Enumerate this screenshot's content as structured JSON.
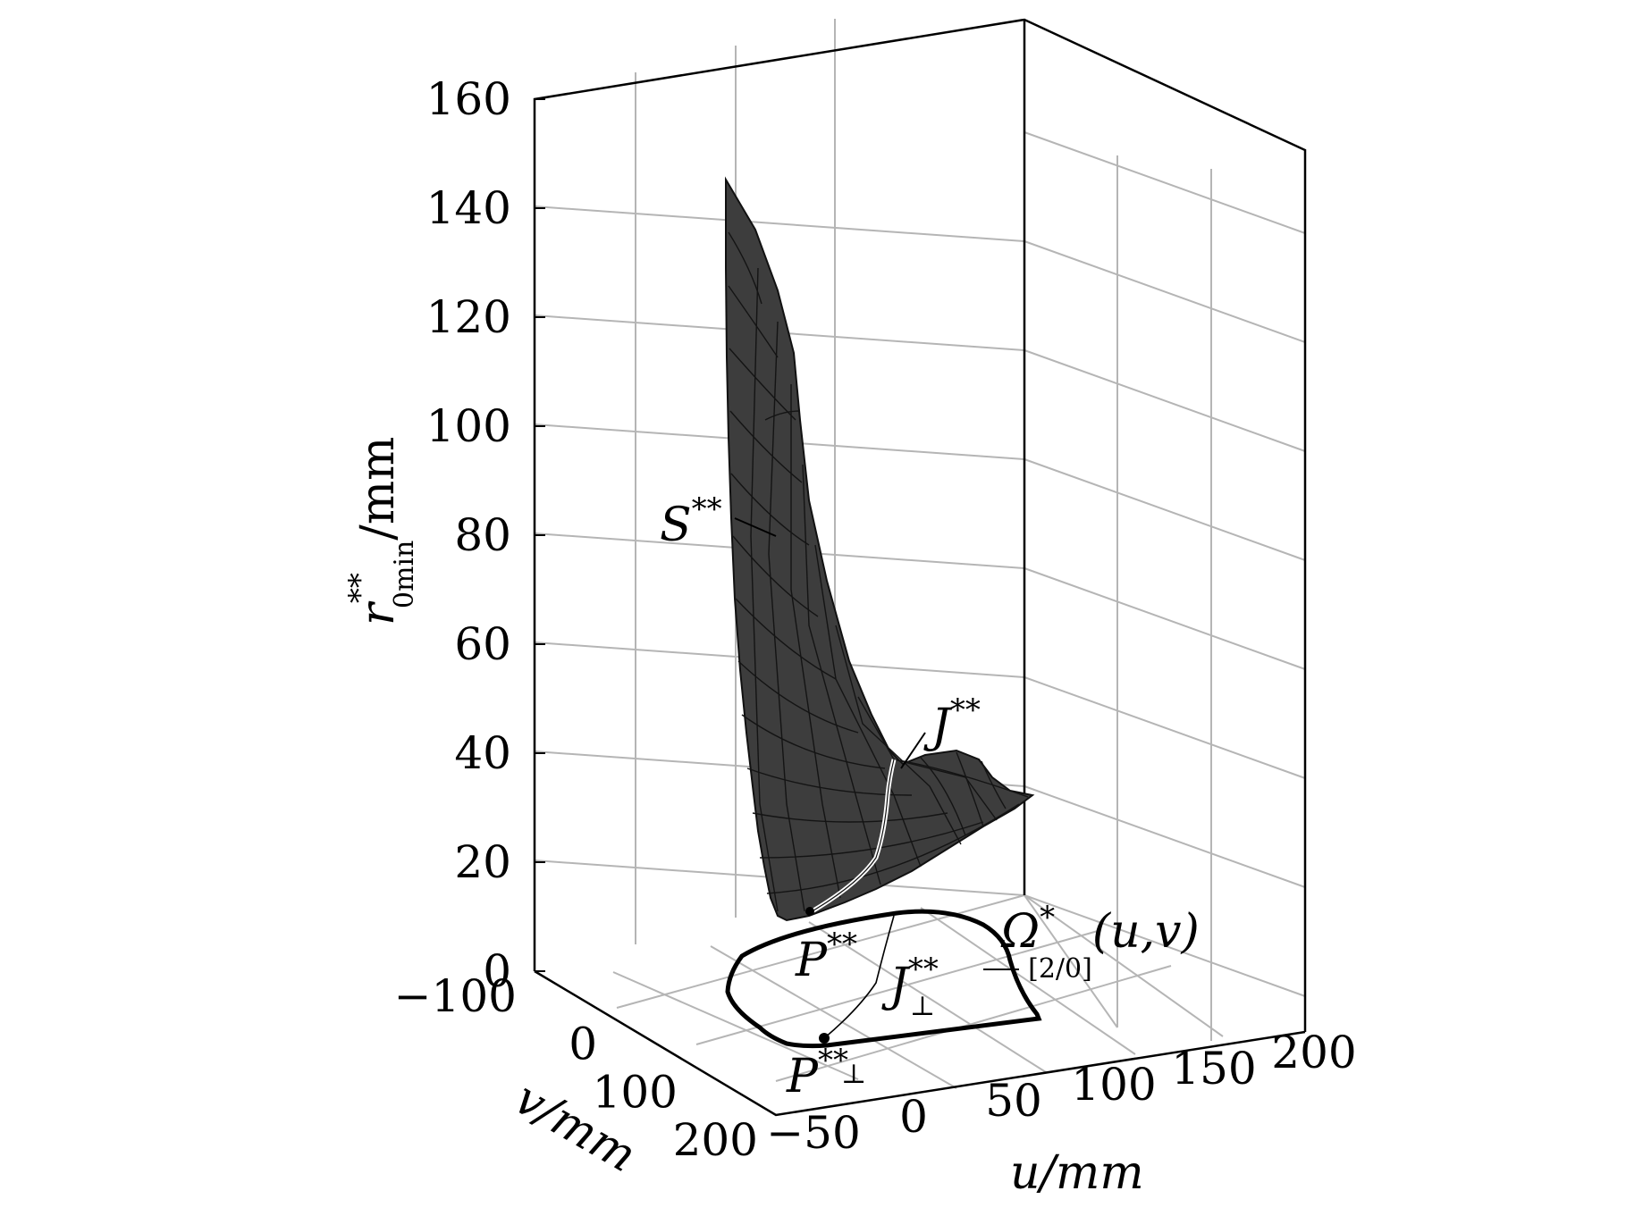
{
  "chart_data": {
    "type": "surface3d",
    "title": "",
    "axes": {
      "z": {
        "label": "r**0min/mm",
        "label_base": "r",
        "label_sup": "**",
        "label_sub": "0min",
        "label_unit": "/mm",
        "ticks": [
          "0",
          "20",
          "40",
          "60",
          "80",
          "100",
          "120",
          "140",
          "160"
        ],
        "range": [
          0,
          160
        ]
      },
      "v": {
        "label": "v/mm",
        "ticks": [
          "−100",
          "0",
          "100",
          "200"
        ],
        "range": [
          -100,
          200
        ]
      },
      "u": {
        "label": "u/mm",
        "ticks": [
          "−50",
          "0",
          "50",
          "100",
          "150",
          "200"
        ],
        "range": [
          -50,
          200
        ]
      }
    },
    "annotations": {
      "surface": {
        "base": "S",
        "sup": "**"
      },
      "ridge": {
        "base": "J",
        "sup": "**"
      },
      "projection_curve": {
        "base": "J",
        "sup": "**",
        "sub": "⊥"
      },
      "point": {
        "base": "P",
        "sup": "**"
      },
      "projected_point": {
        "base": "P",
        "sup": "**",
        "sub": "⊥"
      },
      "domain": {
        "base": "Ω",
        "sup": "*",
        "sub": "[2/0]",
        "args": "(u,v)"
      }
    },
    "grid": true,
    "colors": {
      "surface": "#3a3a3a",
      "mesh": "#151515",
      "grid": "#b5b5b5",
      "ridge": "#ffffff"
    }
  }
}
